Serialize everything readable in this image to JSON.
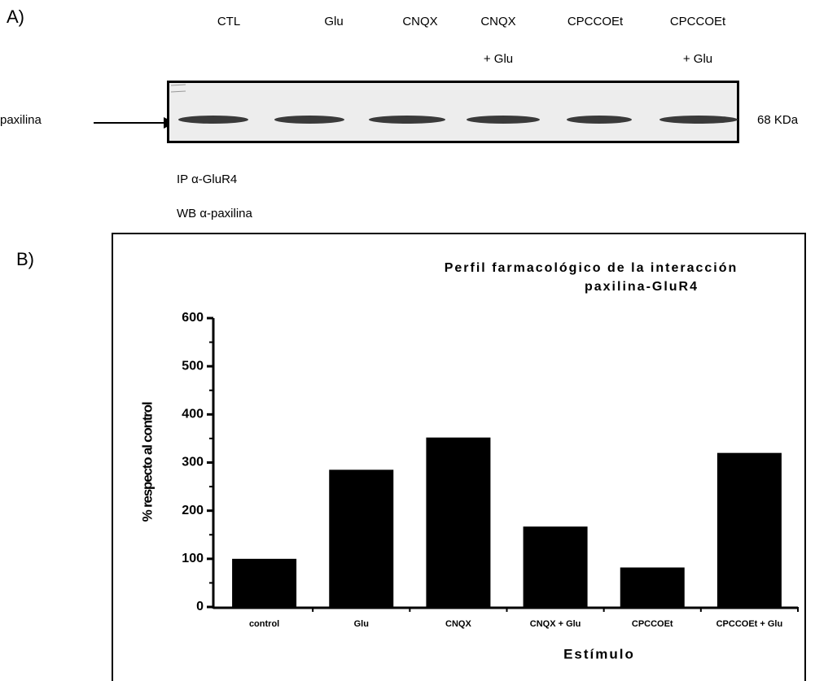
{
  "panel_a": {
    "label": "A)",
    "lanes": [
      {
        "name": "CTL"
      },
      {
        "name": "Glu"
      },
      {
        "name": "CNQX"
      },
      {
        "name": "CNQX",
        "sub": "+ Glu"
      },
      {
        "name": "CPCCOEt"
      },
      {
        "name": "CPCCOEt",
        "sub": "+ Glu"
      }
    ],
    "band_label": "paxilina",
    "size_label": "68 KDa",
    "ip": "IP α-GluR4",
    "wb": "WB α-paxilina"
  },
  "panel_b": {
    "label": "B)"
  },
  "chart_data": {
    "type": "bar",
    "title": [
      "Perfil farmacológico de la interacción",
      "paxilina-GluR4"
    ],
    "x_label": "Estímulo",
    "y_label": "% respecto al control",
    "categories": [
      "control",
      "Glu",
      "CNQX",
      "CNQX + Glu",
      "CPCCOEt",
      "CPCCOEt + Glu"
    ],
    "values": [
      100,
      285,
      352,
      167,
      82,
      320
    ],
    "color": "#000000",
    "ylim": [
      0,
      600
    ],
    "yticks": [
      0,
      100,
      200,
      300,
      400,
      500,
      600
    ],
    "minor_yticks": [
      50,
      150,
      250,
      350,
      450,
      550
    ]
  }
}
